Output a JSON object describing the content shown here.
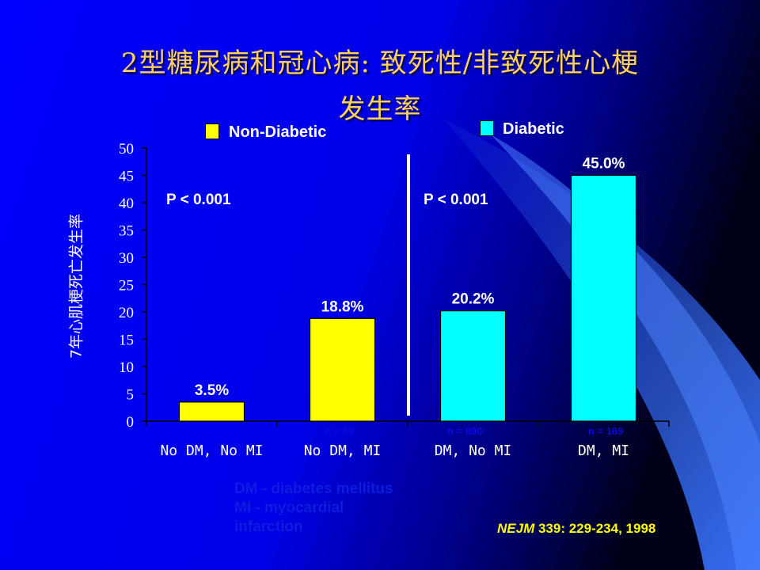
{
  "title": {
    "line1": "2型糖尿病和冠心病: 致死性/非致死性心梗",
    "line2": "发生率"
  },
  "legend": [
    {
      "label": "Non-Diabetic",
      "color": "#ffff00"
    },
    {
      "label": "Diabetic",
      "color": "#00ffff"
    }
  ],
  "p_values": [
    "P < 0.001",
    "P < 0.001"
  ],
  "footnote": {
    "line1": "DM - diabetes mellitus",
    "line2": "MI  - myocardial",
    "line3": "infarction"
  },
  "reference": {
    "journal": "NEJM",
    "citation": " 339: 229-234, 1998"
  },
  "chart_data": {
    "type": "bar",
    "ylabel": "7年心肌梗死亡发生率",
    "ylim": [
      0,
      50
    ],
    "yticks": [
      0,
      5,
      10,
      15,
      20,
      25,
      30,
      35,
      40,
      45,
      50
    ],
    "categories": [
      "No DM, No MI",
      "No DM, MI",
      "DM, No MI",
      "DM, MI"
    ],
    "values": [
      3.5,
      18.8,
      20.2,
      45.0
    ],
    "value_labels": [
      "3.5%",
      "18.8%",
      "20.2%",
      "45.0%"
    ],
    "n_labels": [
      "",
      "n = 69",
      "n = 890",
      "n = 169"
    ],
    "bar_colors": [
      "#ffff00",
      "#ffff00",
      "#00ffff",
      "#00ffff"
    ],
    "grid": false
  }
}
